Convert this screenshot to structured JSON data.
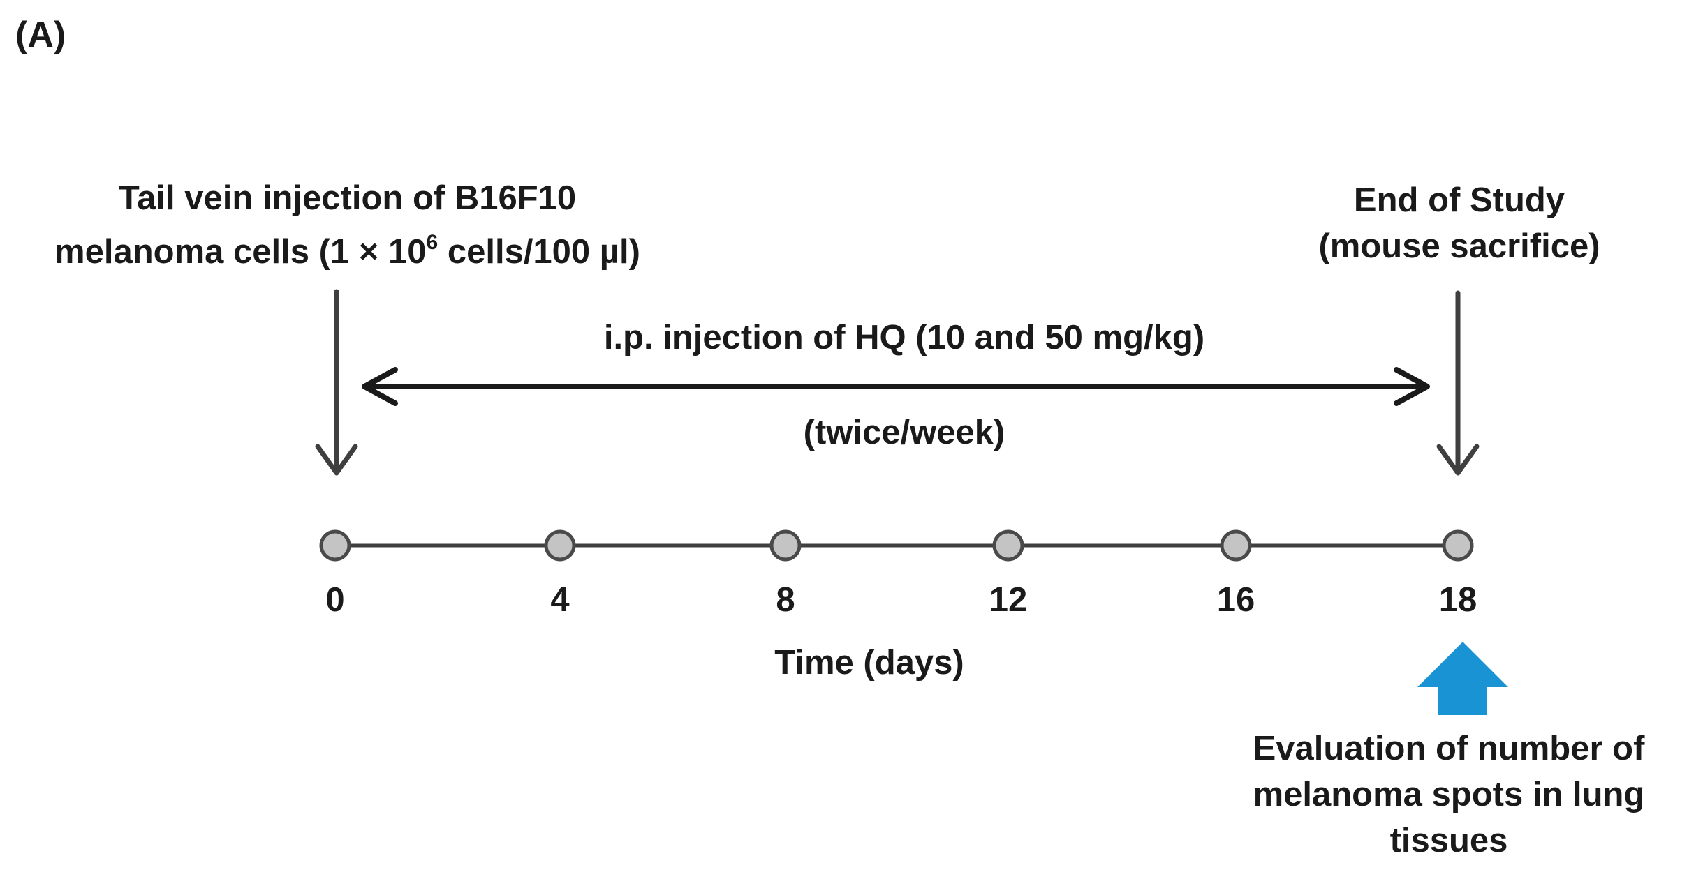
{
  "panel_label": "(A)",
  "start_event": {
    "line1": "Tail vein injection of B16F10",
    "line2_prefix": "melanoma cells (1 × 10",
    "line2_superscript": "6",
    "line2_suffix": " cells/100 µl)"
  },
  "end_event": {
    "line1": "End of Study",
    "line2": "(mouse sacrifice)"
  },
  "treatment": {
    "label": "i.p. injection of HQ (10 and 50 mg/kg)",
    "frequency": "(twice/week)",
    "start_day": 0,
    "end_day": 18
  },
  "timeline": {
    "days": [
      0,
      4,
      8,
      12,
      16,
      18
    ],
    "labels": [
      "0",
      "4",
      "8",
      "12",
      "16",
      "18"
    ],
    "axis_label": "Time (days)"
  },
  "evaluation": {
    "line1": "Evaluation of number of",
    "line2": "melanoma spots in lung",
    "line3": "tissues"
  },
  "colors": {
    "text": "#1a1a1a",
    "arrow": "#3f3f3f",
    "timeline": "#3f3f3f",
    "node_fill": "#c4c4c4",
    "node_stroke": "#4a4a4a",
    "highlight_arrow": "#1a93d4"
  }
}
